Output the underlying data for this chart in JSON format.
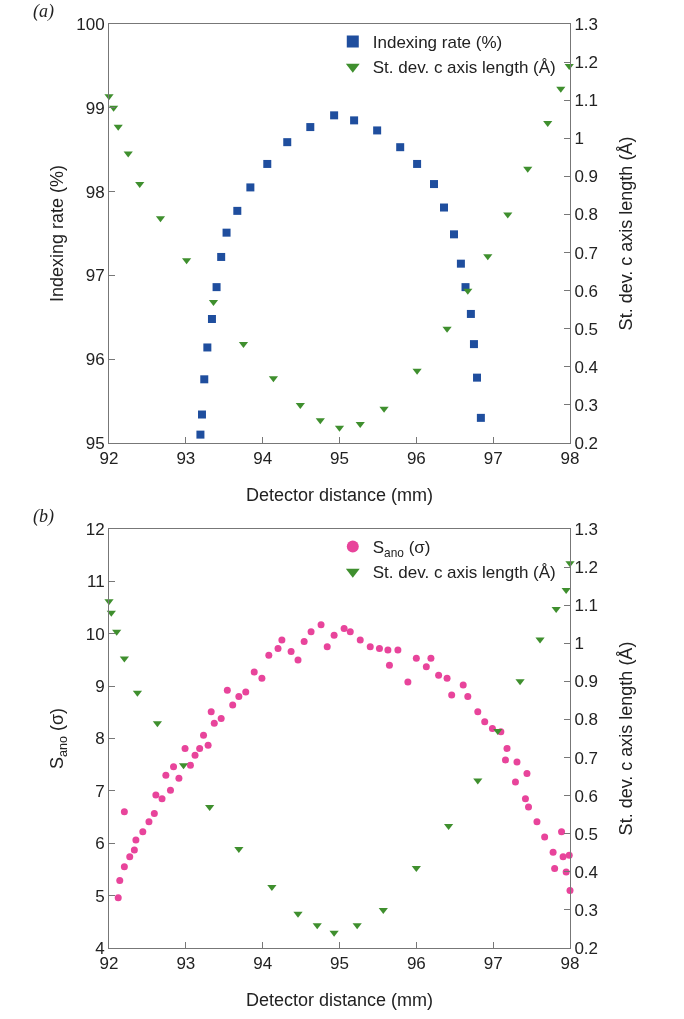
{
  "chart_data": [
    {
      "type": "scatter",
      "annotations": [
        "(a)"
      ],
      "xlabel": "Detector distance (mm)",
      "ylabel": "Indexing rate (%)",
      "y2label": "St. dev. c axis length (Å)",
      "xlim": [
        92,
        98
      ],
      "xticks": [
        92,
        93,
        94,
        95,
        96,
        97,
        98
      ],
      "ylim": [
        95,
        100
      ],
      "yticks": [
        95,
        96,
        97,
        98,
        99,
        100
      ],
      "y2lim": [
        0.2,
        1.3
      ],
      "y2ticks": [
        0.2,
        0.3,
        0.4,
        0.5,
        0.6,
        0.7,
        0.8,
        0.9,
        1,
        1.1,
        1.2,
        1.3
      ],
      "grid": false,
      "legend": "top right",
      "series": [
        {
          "name": "Indexing rate (%)",
          "color": "#1f4e9e",
          "marker": "square",
          "x": [
            93.19,
            93.21,
            93.24,
            93.28,
            93.34,
            93.4,
            93.46,
            93.53,
            93.67,
            93.84,
            94.06,
            94.32,
            94.62,
            94.93,
            95.19,
            95.49,
            95.79,
            96.01,
            96.23,
            96.36,
            96.49,
            96.58,
            96.64,
            96.71,
            96.75,
            96.79,
            96.84
          ],
          "values": [
            95.1,
            95.34,
            95.76,
            96.14,
            96.48,
            96.86,
            97.22,
            97.51,
            97.77,
            98.05,
            98.33,
            98.59,
            98.77,
            98.91,
            98.85,
            98.73,
            98.53,
            98.33,
            98.09,
            97.81,
            97.49,
            97.14,
            96.86,
            96.54,
            96.18,
            95.78,
            95.3
          ]
        },
        {
          "name": "St. dev. c axis length (Å)",
          "color": "#3f8f2e",
          "marker": "triangle",
          "axis": "y2",
          "x": [
            92.0,
            92.06,
            92.12,
            92.25,
            92.4,
            92.67,
            93.01,
            93.36,
            93.75,
            94.14,
            94.49,
            94.75,
            95.0,
            95.27,
            95.58,
            96.01,
            96.4,
            96.67,
            96.93,
            97.19,
            97.45,
            97.71,
            97.88,
            97.99
          ],
          "values": [
            1.11,
            1.08,
            1.03,
            0.96,
            0.88,
            0.79,
            0.68,
            0.57,
            0.46,
            0.37,
            0.3,
            0.26,
            0.24,
            0.25,
            0.29,
            0.39,
            0.5,
            0.6,
            0.69,
            0.8,
            0.92,
            1.04,
            1.13,
            1.19
          ]
        }
      ]
    },
    {
      "type": "scatter",
      "annotations": [
        "(b)"
      ],
      "xlabel": "Detector distance (mm)",
      "ylabel": "S$_{ano}$ (σ)",
      "y2label": "St. dev. c axis length (Å)",
      "xlim": [
        92,
        98
      ],
      "xticks": [
        92,
        93,
        94,
        95,
        96,
        97,
        98
      ],
      "ylim": [
        4,
        12
      ],
      "yticks": [
        4,
        5,
        6,
        7,
        8,
        9,
        10,
        11,
        12
      ],
      "y2lim": [
        0.2,
        1.3
      ],
      "y2ticks": [
        0.2,
        0.3,
        0.4,
        0.5,
        0.6,
        0.7,
        0.8,
        0.9,
        1,
        1.1,
        1.2,
        1.3
      ],
      "grid": false,
      "legend": "top right",
      "series": [
        {
          "name": "S$_{ano}$ (σ)",
          "color": "#e8449b",
          "marker": "circle",
          "x": [
            92.12,
            92.14,
            92.2,
            92.2,
            92.27,
            92.33,
            92.35,
            92.44,
            92.52,
            92.59,
            92.61,
            92.69,
            92.74,
            92.8,
            92.84,
            92.91,
            92.99,
            93.06,
            93.12,
            93.18,
            93.23,
            93.29,
            93.33,
            93.37,
            93.46,
            93.54,
            93.61,
            93.69,
            93.78,
            93.89,
            93.99,
            94.08,
            94.2,
            94.25,
            94.37,
            94.46,
            94.54,
            94.63,
            94.76,
            94.84,
            94.93,
            95.06,
            95.14,
            95.27,
            95.4,
            95.52,
            95.63,
            95.65,
            95.76,
            95.89,
            96.0,
            96.13,
            96.19,
            96.29,
            96.4,
            96.46,
            96.61,
            96.67,
            96.8,
            96.89,
            96.99,
            97.1,
            97.18,
            97.16,
            97.31,
            97.29,
            97.44,
            97.42,
            97.46,
            97.57,
            97.67,
            97.78,
            97.8,
            97.89,
            97.91,
            97.95,
            97.99,
            98.0
          ],
          "values": [
            4.96,
            5.29,
            6.6,
            5.55,
            5.74,
            5.87,
            6.06,
            6.22,
            6.41,
            6.57,
            6.92,
            6.85,
            7.3,
            7.01,
            7.46,
            7.24,
            7.81,
            7.49,
            7.68,
            7.81,
            8.06,
            7.87,
            8.51,
            8.29,
            8.38,
            8.92,
            8.64,
            8.8,
            8.89,
            9.27,
            9.15,
            9.59,
            9.72,
            9.88,
            9.66,
            9.5,
            9.85,
            10.04,
            10.17,
            9.75,
            9.97,
            10.1,
            10.04,
            9.88,
            9.75,
            9.72,
            9.69,
            9.4,
            9.69,
            9.08,
            9.53,
            9.37,
            9.53,
            9.21,
            9.15,
            8.83,
            9.02,
            8.8,
            8.51,
            8.32,
            8.19,
            8.13,
            7.81,
            7.59,
            7.55,
            7.17,
            7.33,
            6.85,
            6.69,
            6.41,
            6.12,
            5.83,
            5.52,
            6.22,
            5.74,
            5.45,
            5.77,
            5.1
          ]
        },
        {
          "name": "St. dev. c axis length (Å)",
          "color": "#3f8f2e",
          "marker": "triangle",
          "axis": "y2",
          "x": [
            92.0,
            92.03,
            92.1,
            92.2,
            92.37,
            92.63,
            92.97,
            93.31,
            93.69,
            94.12,
            94.46,
            94.71,
            94.93,
            95.23,
            95.57,
            96.0,
            96.42,
            96.8,
            97.06,
            97.35,
            97.61,
            97.82,
            97.95,
            98.0
          ],
          "values": [
            1.11,
            1.08,
            1.03,
            0.96,
            0.87,
            0.79,
            0.68,
            0.57,
            0.46,
            0.36,
            0.29,
            0.26,
            0.24,
            0.26,
            0.3,
            0.41,
            0.52,
            0.64,
            0.77,
            0.9,
            1.01,
            1.09,
            1.14,
            1.21
          ]
        }
      ]
    }
  ]
}
